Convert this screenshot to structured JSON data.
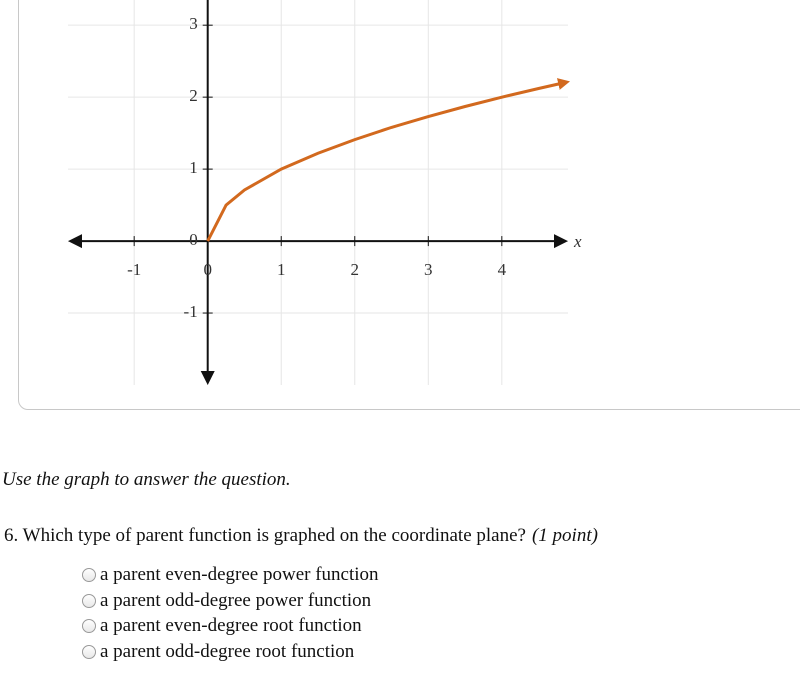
{
  "graph": {
    "xlim": [
      -1.9,
      4.9
    ],
    "ylim": [
      -2,
      3.35
    ],
    "xticks": [
      -1,
      0,
      1,
      2,
      3,
      4
    ],
    "yticks": [
      -1,
      0,
      1,
      2,
      3
    ],
    "x_label": "x",
    "curve": {
      "color": "#d2691e",
      "x": [
        0,
        0.25,
        0.5,
        1,
        1.5,
        2,
        2.5,
        3,
        3.5,
        4,
        4.5,
        4.8
      ],
      "y": [
        0,
        0.5,
        0.71,
        1,
        1.22,
        1.41,
        1.58,
        1.73,
        1.87,
        2,
        2.12,
        2.19
      ]
    }
  },
  "instruction": "Use the graph to answer the question.",
  "question": {
    "text": "6. Which type of parent function is graphed on the coordinate plane?",
    "points": "(1 point)",
    "options": [
      "a parent even-degree power function",
      "a parent odd-degree power function",
      "a parent even-degree root function",
      "a parent odd-degree root function"
    ]
  }
}
